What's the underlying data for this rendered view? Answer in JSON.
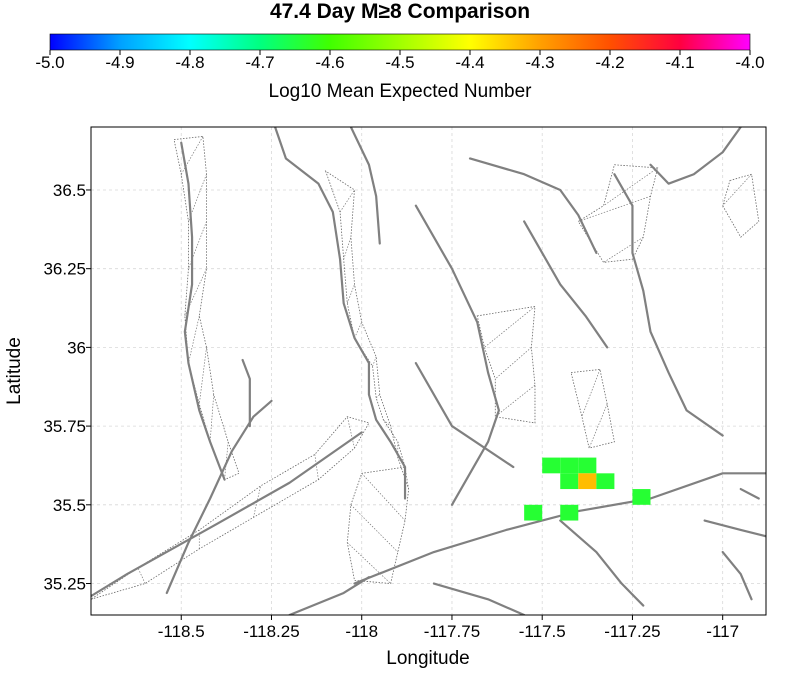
{
  "chart_data": {
    "type": "heatmap",
    "title": "47.4 Day M≥8 Comparison",
    "colorbar": {
      "label": "Log10 Mean Expected Number",
      "range": [
        -5.0,
        -4.0
      ],
      "ticks": [
        "-5.0",
        "-4.9",
        "-4.8",
        "-4.7",
        "-4.6",
        "-4.5",
        "-4.4",
        "-4.3",
        "-4.2",
        "-4.1",
        "-4.0"
      ],
      "colors": [
        "#0000ff",
        "#00a0ff",
        "#00ffff",
        "#00ff80",
        "#40ff00",
        "#a0ff00",
        "#ffff00",
        "#ffa000",
        "#ff5000",
        "#ff0040",
        "#ff00ff"
      ]
    },
    "xlabel": "Longitude",
    "ylabel": "Latitude",
    "xlim": [
      -118.75,
      -116.88
    ],
    "ylim": [
      35.15,
      36.7
    ],
    "xticks": [
      "-118.5",
      "-118.25",
      "-118",
      "-117.75",
      "-117.5",
      "-117.25",
      "-117"
    ],
    "xtick_values": [
      -118.5,
      -118.25,
      -118.0,
      -117.75,
      -117.5,
      -117.25,
      -117.0
    ],
    "yticks": [
      "35.25",
      "35.5",
      "35.75",
      "36",
      "36.25",
      "36.5"
    ],
    "ytick_values": [
      35.25,
      35.5,
      35.75,
      36.0,
      36.25,
      36.5
    ],
    "grid": true,
    "cell_size_deg": 0.05,
    "cells": [
      {
        "lon": -117.475,
        "lat": 35.625,
        "value": -4.64
      },
      {
        "lon": -117.425,
        "lat": 35.625,
        "value": -4.64
      },
      {
        "lon": -117.375,
        "lat": 35.625,
        "value": -4.64
      },
      {
        "lon": -117.425,
        "lat": 35.575,
        "value": -4.64
      },
      {
        "lon": -117.375,
        "lat": 35.575,
        "value": -4.33
      },
      {
        "lon": -117.325,
        "lat": 35.575,
        "value": -4.64
      },
      {
        "lon": -117.525,
        "lat": 35.475,
        "value": -4.64
      },
      {
        "lon": -117.425,
        "lat": 35.475,
        "value": -4.64
      },
      {
        "lon": -117.225,
        "lat": 35.525,
        "value": -4.64
      }
    ],
    "fault_traces": [
      [
        [
          -118.75,
          35.21
        ],
        [
          -118.65,
          35.28
        ],
        [
          -118.4,
          35.44
        ],
        [
          -118.2,
          35.57
        ],
        [
          -118.0,
          35.73
        ]
      ],
      [
        [
          -118.54,
          35.22
        ],
        [
          -118.48,
          35.38
        ],
        [
          -118.42,
          35.52
        ],
        [
          -118.36,
          35.67
        ],
        [
          -118.3,
          35.78
        ],
        [
          -118.25,
          35.83
        ]
      ],
      [
        [
          -118.5,
          36.65
        ],
        [
          -118.48,
          36.52
        ],
        [
          -118.47,
          36.35
        ],
        [
          -118.47,
          36.2
        ],
        [
          -118.49,
          36.05
        ],
        [
          -118.48,
          35.95
        ],
        [
          -118.45,
          35.8
        ],
        [
          -118.42,
          35.7
        ],
        [
          -118.38,
          35.58
        ]
      ],
      [
        [
          -118.33,
          35.96
        ],
        [
          -118.31,
          35.9
        ],
        [
          -118.31,
          35.75
        ]
      ],
      [
        [
          -118.24,
          36.7
        ],
        [
          -118.21,
          36.6
        ],
        [
          -118.12,
          36.52
        ],
        [
          -118.08,
          36.43
        ],
        [
          -118.06,
          36.28
        ],
        [
          -118.05,
          36.14
        ],
        [
          -118.02,
          36.03
        ],
        [
          -117.98,
          35.95
        ],
        [
          -117.98,
          35.85
        ],
        [
          -117.96,
          35.77
        ],
        [
          -117.92,
          35.7
        ],
        [
          -117.88,
          35.62
        ],
        [
          -117.88,
          35.52
        ]
      ],
      [
        [
          -118.03,
          36.7
        ],
        [
          -117.98,
          36.58
        ],
        [
          -117.96,
          36.48
        ],
        [
          -117.95,
          36.33
        ]
      ],
      [
        [
          -118.02,
          35.25
        ],
        [
          -117.8,
          35.35
        ],
        [
          -117.6,
          35.42
        ],
        [
          -117.4,
          35.48
        ],
        [
          -117.2,
          35.52
        ],
        [
          -117.0,
          35.6
        ],
        [
          -116.88,
          35.6
        ]
      ],
      [
        [
          -117.85,
          36.45
        ],
        [
          -117.75,
          36.25
        ],
        [
          -117.68,
          36.08
        ],
        [
          -117.65,
          35.92
        ],
        [
          -117.62,
          35.8
        ],
        [
          -117.65,
          35.7
        ],
        [
          -117.7,
          35.6
        ],
        [
          -117.75,
          35.5
        ]
      ],
      [
        [
          -117.85,
          35.95
        ],
        [
          -117.75,
          35.75
        ],
        [
          -117.58,
          35.62
        ]
      ],
      [
        [
          -117.7,
          36.6
        ],
        [
          -117.55,
          36.55
        ],
        [
          -117.45,
          36.5
        ],
        [
          -117.4,
          36.42
        ],
        [
          -117.35,
          36.3
        ]
      ],
      [
        [
          -117.55,
          36.4
        ],
        [
          -117.5,
          36.3
        ],
        [
          -117.45,
          36.2
        ],
        [
          -117.38,
          36.1
        ],
        [
          -117.32,
          36.0
        ]
      ],
      [
        [
          -117.3,
          36.55
        ],
        [
          -117.25,
          36.45
        ],
        [
          -117.25,
          36.3
        ],
        [
          -117.22,
          36.18
        ],
        [
          -117.2,
          36.05
        ],
        [
          -117.15,
          35.92
        ],
        [
          -117.1,
          35.8
        ],
        [
          -117.0,
          35.72
        ]
      ],
      [
        [
          -117.2,
          36.58
        ],
        [
          -117.15,
          36.52
        ],
        [
          -117.08,
          36.55
        ],
        [
          -117.0,
          36.62
        ],
        [
          -116.95,
          36.7
        ]
      ],
      [
        [
          -117.45,
          35.45
        ],
        [
          -117.35,
          35.35
        ],
        [
          -117.28,
          35.25
        ],
        [
          -117.22,
          35.18
        ]
      ],
      [
        [
          -117.8,
          35.25
        ],
        [
          -117.65,
          35.2
        ],
        [
          -117.55,
          35.15
        ]
      ],
      [
        [
          -118.2,
          35.15
        ],
        [
          -118.05,
          35.22
        ],
        [
          -117.98,
          35.27
        ]
      ],
      [
        [
          -117.05,
          35.45
        ],
        [
          -116.95,
          35.42
        ],
        [
          -116.88,
          35.4
        ]
      ],
      [
        [
          -117.0,
          35.35
        ],
        [
          -116.95,
          35.28
        ],
        [
          -116.92,
          35.2
        ]
      ],
      [
        [
          -116.95,
          35.55
        ],
        [
          -116.9,
          35.52
        ]
      ]
    ],
    "fault_zones": [
      [
        [
          -118.52,
          36.66
        ],
        [
          -118.44,
          36.67
        ],
        [
          -118.43,
          36.55
        ],
        [
          -118.43,
          36.4
        ],
        [
          -118.43,
          36.25
        ],
        [
          -118.45,
          36.1
        ],
        [
          -118.43,
          36.0
        ],
        [
          -118.41,
          35.85
        ],
        [
          -118.37,
          35.7
        ],
        [
          -118.34,
          35.6
        ],
        [
          -118.38,
          35.58
        ],
        [
          -118.42,
          35.7
        ],
        [
          -118.45,
          35.82
        ],
        [
          -118.48,
          35.95
        ],
        [
          -118.49,
          36.1
        ],
        [
          -118.48,
          36.25
        ],
        [
          -118.48,
          36.4
        ],
        [
          -118.5,
          36.55
        ]
      ],
      [
        [
          -118.1,
          36.56
        ],
        [
          -118.06,
          36.43
        ],
        [
          -118.05,
          36.28
        ],
        [
          -118.04,
          36.14
        ],
        [
          -118.02,
          36.03
        ],
        [
          -117.97,
          35.94
        ],
        [
          -117.96,
          35.84
        ],
        [
          -117.94,
          35.77
        ],
        [
          -117.9,
          35.7
        ],
        [
          -117.88,
          35.62
        ],
        [
          -118.0,
          35.6
        ],
        [
          -118.03,
          35.5
        ],
        [
          -118.04,
          35.38
        ],
        [
          -118.02,
          35.26
        ],
        [
          -117.92,
          35.25
        ],
        [
          -117.9,
          35.35
        ],
        [
          -117.88,
          35.45
        ],
        [
          -117.87,
          35.55
        ],
        [
          -117.9,
          35.65
        ],
        [
          -117.92,
          35.75
        ],
        [
          -117.95,
          35.85
        ],
        [
          -117.96,
          35.97
        ],
        [
          -118.0,
          36.08
        ],
        [
          -118.02,
          36.2
        ],
        [
          -118.03,
          36.35
        ],
        [
          -118.02,
          36.5
        ]
      ],
      [
        [
          -117.68,
          36.1
        ],
        [
          -117.52,
          36.13
        ],
        [
          -117.53,
          36.0
        ],
        [
          -117.52,
          35.88
        ],
        [
          -117.52,
          35.76
        ],
        [
          -117.63,
          35.78
        ],
        [
          -117.63,
          35.9
        ],
        [
          -117.66,
          36.0
        ]
      ],
      [
        [
          -117.3,
          36.58
        ],
        [
          -117.18,
          36.57
        ],
        [
          -117.2,
          36.48
        ],
        [
          -117.22,
          36.35
        ],
        [
          -117.25,
          36.28
        ],
        [
          -117.33,
          36.27
        ],
        [
          -117.4,
          36.4
        ],
        [
          -117.33,
          36.45
        ]
      ],
      [
        [
          -117.42,
          35.92
        ],
        [
          -117.34,
          35.93
        ],
        [
          -117.32,
          35.82
        ],
        [
          -117.3,
          35.7
        ],
        [
          -117.37,
          35.68
        ],
        [
          -117.39,
          35.78
        ]
      ],
      [
        [
          -116.98,
          36.53
        ],
        [
          -116.92,
          36.55
        ],
        [
          -116.9,
          36.4
        ],
        [
          -116.95,
          36.35
        ],
        [
          -117.0,
          36.45
        ]
      ],
      [
        [
          -118.75,
          35.2
        ],
        [
          -118.6,
          35.25
        ],
        [
          -118.45,
          35.36
        ],
        [
          -118.3,
          35.46
        ],
        [
          -118.12,
          35.58
        ],
        [
          -118.02,
          35.68
        ],
        [
          -117.98,
          35.76
        ],
        [
          -118.04,
          35.78
        ],
        [
          -118.13,
          35.66
        ],
        [
          -118.28,
          35.56
        ],
        [
          -118.45,
          35.42
        ],
        [
          -118.62,
          35.3
        ]
      ]
    ]
  }
}
